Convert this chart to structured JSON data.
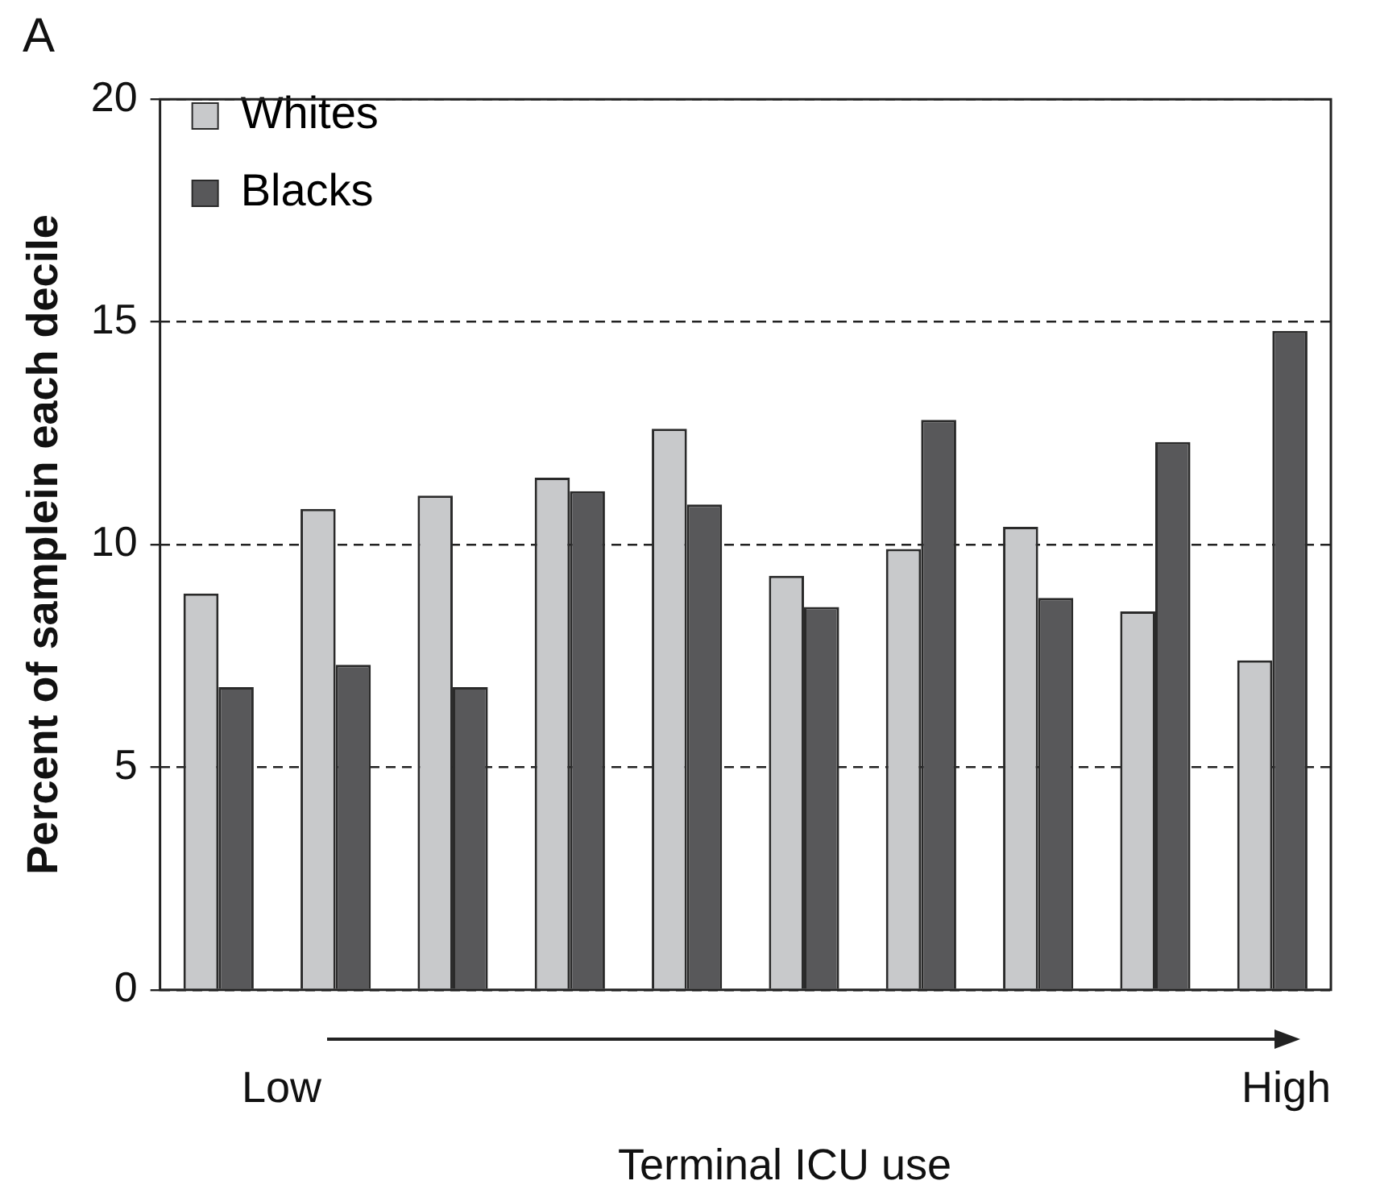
{
  "chart_data": {
    "type": "bar",
    "title": "A",
    "ylabel": "Percent of samplein each decile",
    "xlabel": "Terminal ICU use",
    "categories": [
      null,
      null,
      null,
      null,
      null,
      null,
      null,
      null,
      null,
      null
    ],
    "series": [
      {
        "name": "Whites",
        "color": "#c8c9cb",
        "values": [
          8.9,
          10.8,
          11.1,
          11.5,
          12.6,
          9.3,
          9.9,
          10.4,
          8.5,
          7.4
        ]
      },
      {
        "name": "Blacks",
        "color": "#58585a",
        "values": [
          6.8,
          7.3,
          6.8,
          11.2,
          10.9,
          8.6,
          12.8,
          8.8,
          12.3,
          14.8
        ]
      }
    ],
    "ylim": [
      0,
      20
    ],
    "yticks": [
      0,
      5,
      10,
      15,
      20
    ],
    "grid": "y",
    "line_style": "dashed",
    "legend": "top left",
    "tick_labels": "y",
    "annotations": [
      "Low",
      "High"
    ]
  }
}
